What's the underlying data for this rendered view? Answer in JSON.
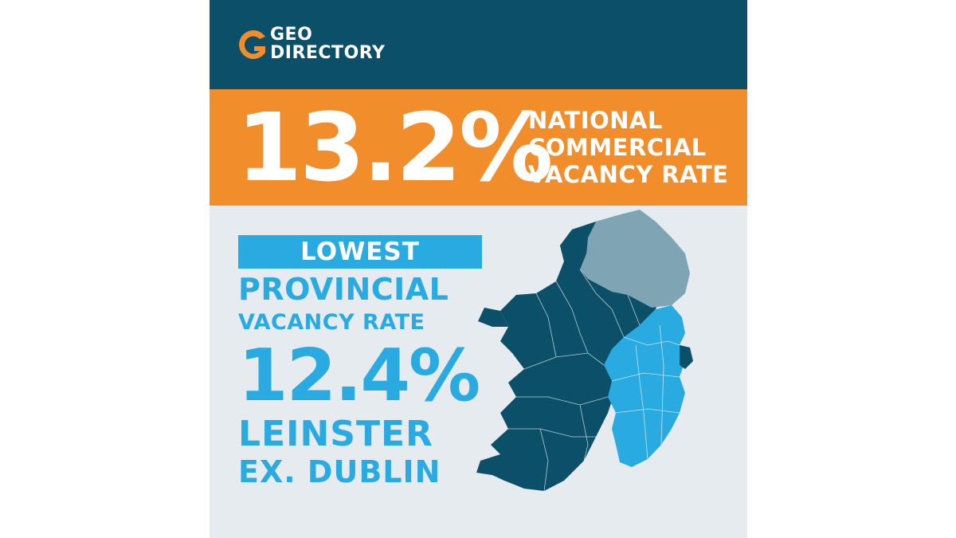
{
  "brand": {
    "line1": "GEO",
    "line2": "DIRECTORY",
    "logo_icon": "g-logo-icon",
    "color": "#f28d2c"
  },
  "headline": {
    "rate": "13.2%",
    "caption_lines": [
      "NATIONAL",
      "COMMERCIAL",
      "VACANCY RATE"
    ]
  },
  "provincial": {
    "tag": "LOWEST",
    "line1": "PROVINCIAL",
    "line2": "VACANCY RATE",
    "rate": "12.4%",
    "province": "LEINSTER",
    "qualifier": "EX. DUBLIN"
  },
  "map": {
    "icon": "ireland-map-icon",
    "highlight_region": "Leinster ex. Dublin",
    "colors": {
      "base": "#0c4f68",
      "highlight": "#29aae1",
      "northern_ireland": "#7fa5b5"
    }
  },
  "colors": {
    "header_bg": "#0c4f68",
    "banner_bg": "#f28d2c",
    "panel_bg": "#e5ebef",
    "accent": "#29aae1"
  }
}
